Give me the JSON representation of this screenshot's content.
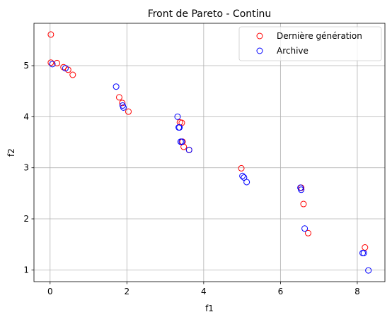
{
  "chart_data": {
    "type": "scatter",
    "title": "Front de Pareto - Continu",
    "xlabel": "f1",
    "ylabel": "f2",
    "xlim": [
      -0.42,
      8.72
    ],
    "ylim": [
      0.77,
      5.83
    ],
    "xticks": [
      0,
      2,
      4,
      6,
      8
    ],
    "yticks": [
      1,
      2,
      3,
      4,
      5
    ],
    "xtick_labels": [
      "0",
      "2",
      "4",
      "6",
      "8"
    ],
    "ytick_labels": [
      "1",
      "2",
      "3",
      "4",
      "5"
    ],
    "grid": true,
    "legend_position": "upper right",
    "series": [
      {
        "name": "Dernière génération",
        "color": "#ff0000",
        "marker": "open-circle",
        "points": [
          [
            0.02,
            5.61
          ],
          [
            0.02,
            5.06
          ],
          [
            0.18,
            5.05
          ],
          [
            0.35,
            4.97
          ],
          [
            0.47,
            4.92
          ],
          [
            0.59,
            4.82
          ],
          [
            1.8,
            4.38
          ],
          [
            1.88,
            4.27
          ],
          [
            2.04,
            4.1
          ],
          [
            3.38,
            3.89
          ],
          [
            3.43,
            3.88
          ],
          [
            3.45,
            3.51
          ],
          [
            3.48,
            3.41
          ],
          [
            3.62,
            3.35
          ],
          [
            4.98,
            2.99
          ],
          [
            6.54,
            2.61
          ],
          [
            6.6,
            2.29
          ],
          [
            6.72,
            1.72
          ],
          [
            8.2,
            1.44
          ]
        ]
      },
      {
        "name": "Archive",
        "color": "#0000ff",
        "marker": "open-circle",
        "points": [
          [
            0.06,
            5.03
          ],
          [
            0.4,
            4.95
          ],
          [
            1.72,
            4.59
          ],
          [
            1.89,
            4.22
          ],
          [
            1.91,
            4.18
          ],
          [
            3.32,
            4.0
          ],
          [
            3.35,
            3.79
          ],
          [
            3.37,
            3.79
          ],
          [
            3.4,
            3.51
          ],
          [
            3.43,
            3.51
          ],
          [
            3.62,
            3.35
          ],
          [
            5.01,
            2.84
          ],
          [
            5.05,
            2.81
          ],
          [
            5.12,
            2.72
          ],
          [
            6.52,
            2.61
          ],
          [
            6.54,
            2.57
          ],
          [
            6.63,
            1.81
          ],
          [
            8.14,
            1.33
          ],
          [
            8.17,
            1.33
          ],
          [
            8.29,
            0.99
          ]
        ]
      }
    ]
  }
}
